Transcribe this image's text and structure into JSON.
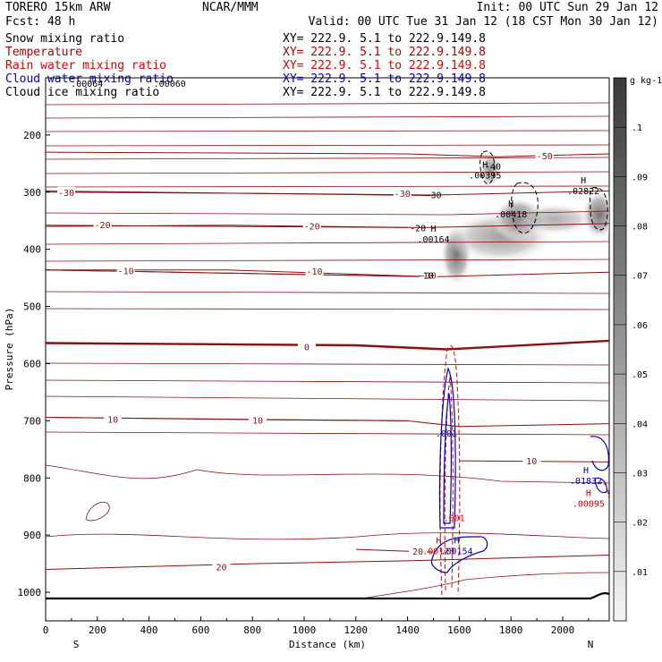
{
  "header": {
    "model": "TORERO  15km ARW",
    "center": "NCAR/MMM",
    "init": "Init: 00 UTC Sun 29 Jan 12",
    "fcst": "Fcst:   48 h",
    "valid": "Valid: 00 UTC Tue 31 Jan 12 (18 CST Mon 30 Jan 12)"
  },
  "legend": [
    {
      "name": "Snow mixing ratio",
      "color": "#000000",
      "xy": "XY= 222.9.  5.1 to 222.9.149.8"
    },
    {
      "name": "Temperature",
      "color": "#b00000",
      "xy": "XY= 222.9.  5.1 to 222.9.149.8"
    },
    {
      "name": "Rain water mixing ratio",
      "color": "#e00000",
      "xy": "XY= 222.9.  5.1 to 222.9.149.8"
    },
    {
      "name": "Cloud water mixing ratio",
      "color": "#0000c8",
      "xy": "XY= 222.9.  5.1 to 222.9.149.8"
    },
    {
      "name": "Cloud ice mixing ratio",
      "color": "#000000",
      "xy": "XY= 222.9.  5.1 to 222.9.149.8"
    }
  ],
  "chart_data": {
    "type": "contour",
    "xlabel": "Distance (km)",
    "ylabel": "Pressure (hPa)",
    "xlim": [
      0,
      2180
    ],
    "ylim": [
      100,
      1050
    ],
    "x_ticks": [
      0,
      200,
      400,
      600,
      800,
      1000,
      1200,
      1400,
      1600,
      1800,
      2000
    ],
    "y_ticks": [
      200,
      300,
      400,
      500,
      600,
      700,
      800,
      900,
      1000
    ],
    "end_labels": {
      "left": "S",
      "right": "N"
    },
    "colorbar": {
      "unit": "g kg-1",
      "levels": [
        0.01,
        0.02,
        0.03,
        0.04,
        0.05,
        0.06,
        0.07,
        0.08,
        0.09,
        0.1
      ],
      "labels": [
        ".01",
        ".02",
        ".03",
        ".04",
        ".05",
        ".06",
        ".07",
        ".08",
        ".09",
        ".1"
      ]
    },
    "temperature_contours": [
      {
        "label": "-50",
        "p": [
          {
            "x": 0,
            "p": 230
          },
          {
            "x": 1400,
            "p": 233
          },
          {
            "x": 1750,
            "p": 238
          },
          {
            "x": 2180,
            "p": 233
          }
        ],
        "label_x": 1930,
        "label_p": 236
      },
      {
        "label": "-30",
        "p": [
          {
            "x": 0,
            "p": 300
          },
          {
            "x": 800,
            "p": 302
          },
          {
            "x": 1500,
            "p": 305
          },
          {
            "x": 2180,
            "p": 298
          }
        ],
        "label_x": 1380,
        "label_p": 302
      },
      {
        "label": "-30",
        "p": [
          {
            "x": 0,
            "p": 298
          },
          {
            "x": 1500,
            "p": 306
          }
        ],
        "label_x": 80,
        "label_p": 300
      },
      {
        "label": "-20",
        "p": [
          {
            "x": 0,
            "p": 360
          },
          {
            "x": 700,
            "p": 358
          },
          {
            "x": 1450,
            "p": 362
          },
          {
            "x": 2180,
            "p": 355
          }
        ],
        "label_x": 1030,
        "label_p": 359
      },
      {
        "label": "-20",
        "p": [
          {
            "x": 0,
            "p": 358
          },
          {
            "x": 1400,
            "p": 362
          }
        ],
        "label_x": 220,
        "label_p": 357
      },
      {
        "label": "-10",
        "p": [
          {
            "x": 0,
            "p": 436
          },
          {
            "x": 700,
            "p": 436
          },
          {
            "x": 1500,
            "p": 448
          },
          {
            "x": 2180,
            "p": 440
          }
        ],
        "label_x": 310,
        "label_p": 437
      },
      {
        "label": "-10",
        "p": [
          {
            "x": 0,
            "p": 436
          },
          {
            "x": 1500,
            "p": 448
          }
        ],
        "label_x": 1040,
        "label_p": 438
      },
      {
        "label": "-10",
        "p": [
          {
            "x": 0,
            "p": 436
          },
          {
            "x": 1500,
            "p": 448
          }
        ],
        "label_x": 1480,
        "label_p": 445
      },
      {
        "label": "0",
        "p": [
          {
            "x": 0,
            "p": 564
          },
          {
            "x": 600,
            "p": 566
          },
          {
            "x": 1200,
            "p": 568
          },
          {
            "x": 1550,
            "p": 575
          },
          {
            "x": 2180,
            "p": 560
          }
        ],
        "label_x": 1010,
        "label_p": 570
      },
      {
        "label": "10",
        "p": [
          {
            "x": 0,
            "p": 694
          },
          {
            "x": 800,
            "p": 698
          },
          {
            "x": 1400,
            "p": 700
          },
          {
            "x": 1600,
            "p": 710
          },
          {
            "x": 2180,
            "p": 705
          }
        ],
        "label_x": 820,
        "label_p": 699
      },
      {
        "label": "10",
        "p": [
          {
            "x": 0,
            "p": 694
          },
          {
            "x": 1400,
            "p": 700
          }
        ],
        "label_x": 260,
        "label_p": 697
      },
      {
        "label": "10",
        "p": [
          {
            "x": 1600,
            "p": 770
          },
          {
            "x": 2180,
            "p": 772
          }
        ],
        "label_x": 1880,
        "label_p": 770
      },
      {
        "label": "20",
        "p": [
          {
            "x": 0,
            "p": 960
          },
          {
            "x": 800,
            "p": 950
          },
          {
            "x": 1400,
            "p": 945
          },
          {
            "x": 2180,
            "p": 935
          }
        ],
        "label_x": 680,
        "label_p": 955
      },
      {
        "label": "20",
        "p": [
          {
            "x": 1200,
            "p": 925
          },
          {
            "x": 1500,
            "p": 930
          }
        ],
        "label_x": 1440,
        "label_p": 928
      }
    ],
    "extra_labels": [
      {
        "text": ".00064",
        "x": 160,
        "p": 109
      },
      {
        "text": ".00060",
        "x": 480,
        "p": 109
      },
      {
        "text": "-40",
        "x": 1730,
        "p": 254
      },
      {
        "text": "-30",
        "x": 1500,
        "p": 304
      },
      {
        "text": "-20",
        "x": 1440,
        "p": 362
      },
      {
        "text": "-10",
        "x": 1470,
        "p": 445
      }
    ],
    "maxima": [
      {
        "symbol": "H",
        "value": ".00395",
        "x": 1700,
        "p": 257,
        "color": "#000000"
      },
      {
        "symbol": "H",
        "value": ".00418",
        "x": 1800,
        "p": 325,
        "color": "#000000"
      },
      {
        "symbol": "H",
        "value": ".02822",
        "x": 2080,
        "p": 285,
        "color": "#000000"
      },
      {
        "symbol": "H",
        "value": ".00164",
        "x": 1500,
        "p": 369,
        "color": "#000000"
      },
      {
        "symbol": "H",
        "value": ".01832",
        "x": 2090,
        "p": 792,
        "color": "#0000c8"
      },
      {
        "symbol": "H",
        "value": ".00095",
        "x": 2100,
        "p": 832,
        "color": "#e00000"
      },
      {
        "symbol": "H",
        "value": ".00123",
        "x": 1520,
        "p": 915,
        "color": "#e00000"
      },
      {
        "symbol": "H",
        "value": ".00154",
        "x": 1590,
        "p": 915,
        "color": "#0000c8"
      }
    ],
    "cloud_labels": [
      {
        "text": ".001",
        "x": 1550,
        "p": 721,
        "color": "#0000c8"
      },
      {
        "text": ".001",
        "x": 1580,
        "p": 869,
        "color": "#e00000"
      }
    ]
  }
}
